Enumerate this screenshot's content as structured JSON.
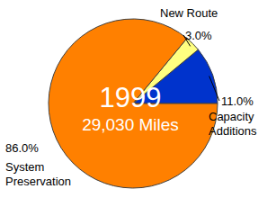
{
  "chart_data": {
    "type": "pie",
    "title": "1999",
    "subtitle": "29,030 Miles",
    "categories": [
      "Capacity Additions",
      "New Route",
      "System Preservation"
    ],
    "values": [
      11,
      3,
      86
    ],
    "value_labels": [
      "11.0%",
      "3.0%",
      "86.0%"
    ],
    "colors": [
      "#0033cc",
      "#ffff80",
      "#ff8000"
    ],
    "data_labels": true
  }
}
